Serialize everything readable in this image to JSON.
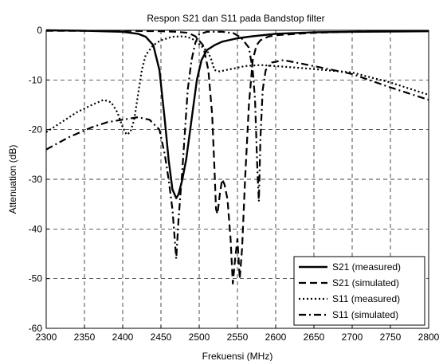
{
  "chart_data": {
    "type": "line",
    "title": "Respon S21 dan S11 pada Bandstop filter",
    "xlabel": "Frekuensi (MHz)",
    "ylabel": "Attenuation (dB)",
    "xlim": [
      2300,
      2800
    ],
    "ylim": [
      -60,
      0
    ],
    "xticks": [
      2300,
      2350,
      2400,
      2450,
      2500,
      2550,
      2600,
      2650,
      2700,
      2750,
      2800
    ],
    "yticks": [
      0,
      -10,
      -20,
      -30,
      -40,
      -50,
      -60
    ],
    "grid": true,
    "legend_position": "bottom-right",
    "series": [
      {
        "name": "S21 (measured)",
        "style": "solid",
        "points": [
          [
            2300,
            0
          ],
          [
            2350,
            -0.1
          ],
          [
            2400,
            -0.3
          ],
          [
            2420,
            -0.7
          ],
          [
            2430,
            -1.3
          ],
          [
            2440,
            -3
          ],
          [
            2448,
            -8
          ],
          [
            2455,
            -18
          ],
          [
            2460,
            -26
          ],
          [
            2465,
            -32
          ],
          [
            2470,
            -33.8
          ],
          [
            2473,
            -33
          ],
          [
            2478,
            -30
          ],
          [
            2483,
            -26
          ],
          [
            2490,
            -18
          ],
          [
            2497,
            -10
          ],
          [
            2503,
            -6
          ],
          [
            2510,
            -4
          ],
          [
            2520,
            -3
          ],
          [
            2530,
            -2.3
          ],
          [
            2550,
            -1.6
          ],
          [
            2570,
            -1.2
          ],
          [
            2600,
            -0.7
          ],
          [
            2650,
            -0.4
          ],
          [
            2700,
            -0.3
          ],
          [
            2800,
            -0.2
          ]
        ]
      },
      {
        "name": "S21 (simulated)",
        "style": "dashed",
        "points": [
          [
            2300,
            -0.1
          ],
          [
            2400,
            -0.1
          ],
          [
            2450,
            -0.2
          ],
          [
            2470,
            -0.3
          ],
          [
            2485,
            -0.5
          ],
          [
            2495,
            -1.2
          ],
          [
            2505,
            -3
          ],
          [
            2512,
            -8
          ],
          [
            2517,
            -17
          ],
          [
            2520,
            -28
          ],
          [
            2522,
            -36
          ],
          [
            2524,
            -37
          ],
          [
            2527,
            -33
          ],
          [
            2530,
            -30
          ],
          [
            2533,
            -31
          ],
          [
            2537,
            -34
          ],
          [
            2541,
            -42
          ],
          [
            2544,
            -51
          ],
          [
            2547,
            -46
          ],
          [
            2550,
            -42
          ],
          [
            2553,
            -50
          ],
          [
            2556,
            -44
          ],
          [
            2560,
            -30
          ],
          [
            2565,
            -15
          ],
          [
            2570,
            -6
          ],
          [
            2575,
            -3
          ],
          [
            2580,
            -2
          ],
          [
            2590,
            -1.3
          ],
          [
            2600,
            -1
          ],
          [
            2650,
            -0.5
          ],
          [
            2700,
            -0.3
          ],
          [
            2800,
            -0.1
          ]
        ]
      },
      {
        "name": "S11 (measured)",
        "style": "dotted",
        "points": [
          [
            2300,
            -20.5
          ],
          [
            2320,
            -18.5
          ],
          [
            2340,
            -16.5
          ],
          [
            2360,
            -15
          ],
          [
            2375,
            -14
          ],
          [
            2385,
            -14.5
          ],
          [
            2393,
            -16.5
          ],
          [
            2400,
            -19.5
          ],
          [
            2405,
            -21
          ],
          [
            2410,
            -20.5
          ],
          [
            2415,
            -18
          ],
          [
            2420,
            -13
          ],
          [
            2425,
            -8
          ],
          [
            2430,
            -5
          ],
          [
            2440,
            -3
          ],
          [
            2450,
            -2
          ],
          [
            2465,
            -1.3
          ],
          [
            2480,
            -1.2
          ],
          [
            2490,
            -1.6
          ],
          [
            2498,
            -2.5
          ],
          [
            2505,
            -3.5
          ],
          [
            2512,
            -4.5
          ],
          [
            2516,
            -6
          ],
          [
            2520,
            -8
          ],
          [
            2527,
            -8.3
          ],
          [
            2535,
            -8
          ],
          [
            2545,
            -7.7
          ],
          [
            2560,
            -7.2
          ],
          [
            2580,
            -7
          ],
          [
            2600,
            -7.2
          ],
          [
            2650,
            -7.8
          ],
          [
            2700,
            -8.5
          ],
          [
            2750,
            -10.5
          ],
          [
            2800,
            -13
          ]
        ]
      },
      {
        "name": "S11 (simulated)",
        "style": "dashdot",
        "points": [
          [
            2300,
            -24
          ],
          [
            2330,
            -21.5
          ],
          [
            2360,
            -19.5
          ],
          [
            2380,
            -18.5
          ],
          [
            2400,
            -18
          ],
          [
            2420,
            -17.5
          ],
          [
            2435,
            -18
          ],
          [
            2448,
            -20
          ],
          [
            2455,
            -25
          ],
          [
            2460,
            -30
          ],
          [
            2465,
            -36
          ],
          [
            2470,
            -46
          ],
          [
            2473,
            -38
          ],
          [
            2478,
            -28
          ],
          [
            2485,
            -12
          ],
          [
            2490,
            -6
          ],
          [
            2495,
            -2.5
          ],
          [
            2500,
            -0.8
          ],
          [
            2510,
            -0.3
          ],
          [
            2530,
            -0.3
          ],
          [
            2545,
            -0.6
          ],
          [
            2555,
            -1.5
          ],
          [
            2565,
            -3.5
          ],
          [
            2570,
            -8
          ],
          [
            2573,
            -14
          ],
          [
            2576,
            -28
          ],
          [
            2578,
            -34.5
          ],
          [
            2580,
            -22
          ],
          [
            2583,
            -12
          ],
          [
            2587,
            -8
          ],
          [
            2595,
            -6.5
          ],
          [
            2610,
            -6
          ],
          [
            2650,
            -7.2
          ],
          [
            2700,
            -8.8
          ],
          [
            2750,
            -11.5
          ],
          [
            2800,
            -14
          ]
        ]
      }
    ]
  }
}
